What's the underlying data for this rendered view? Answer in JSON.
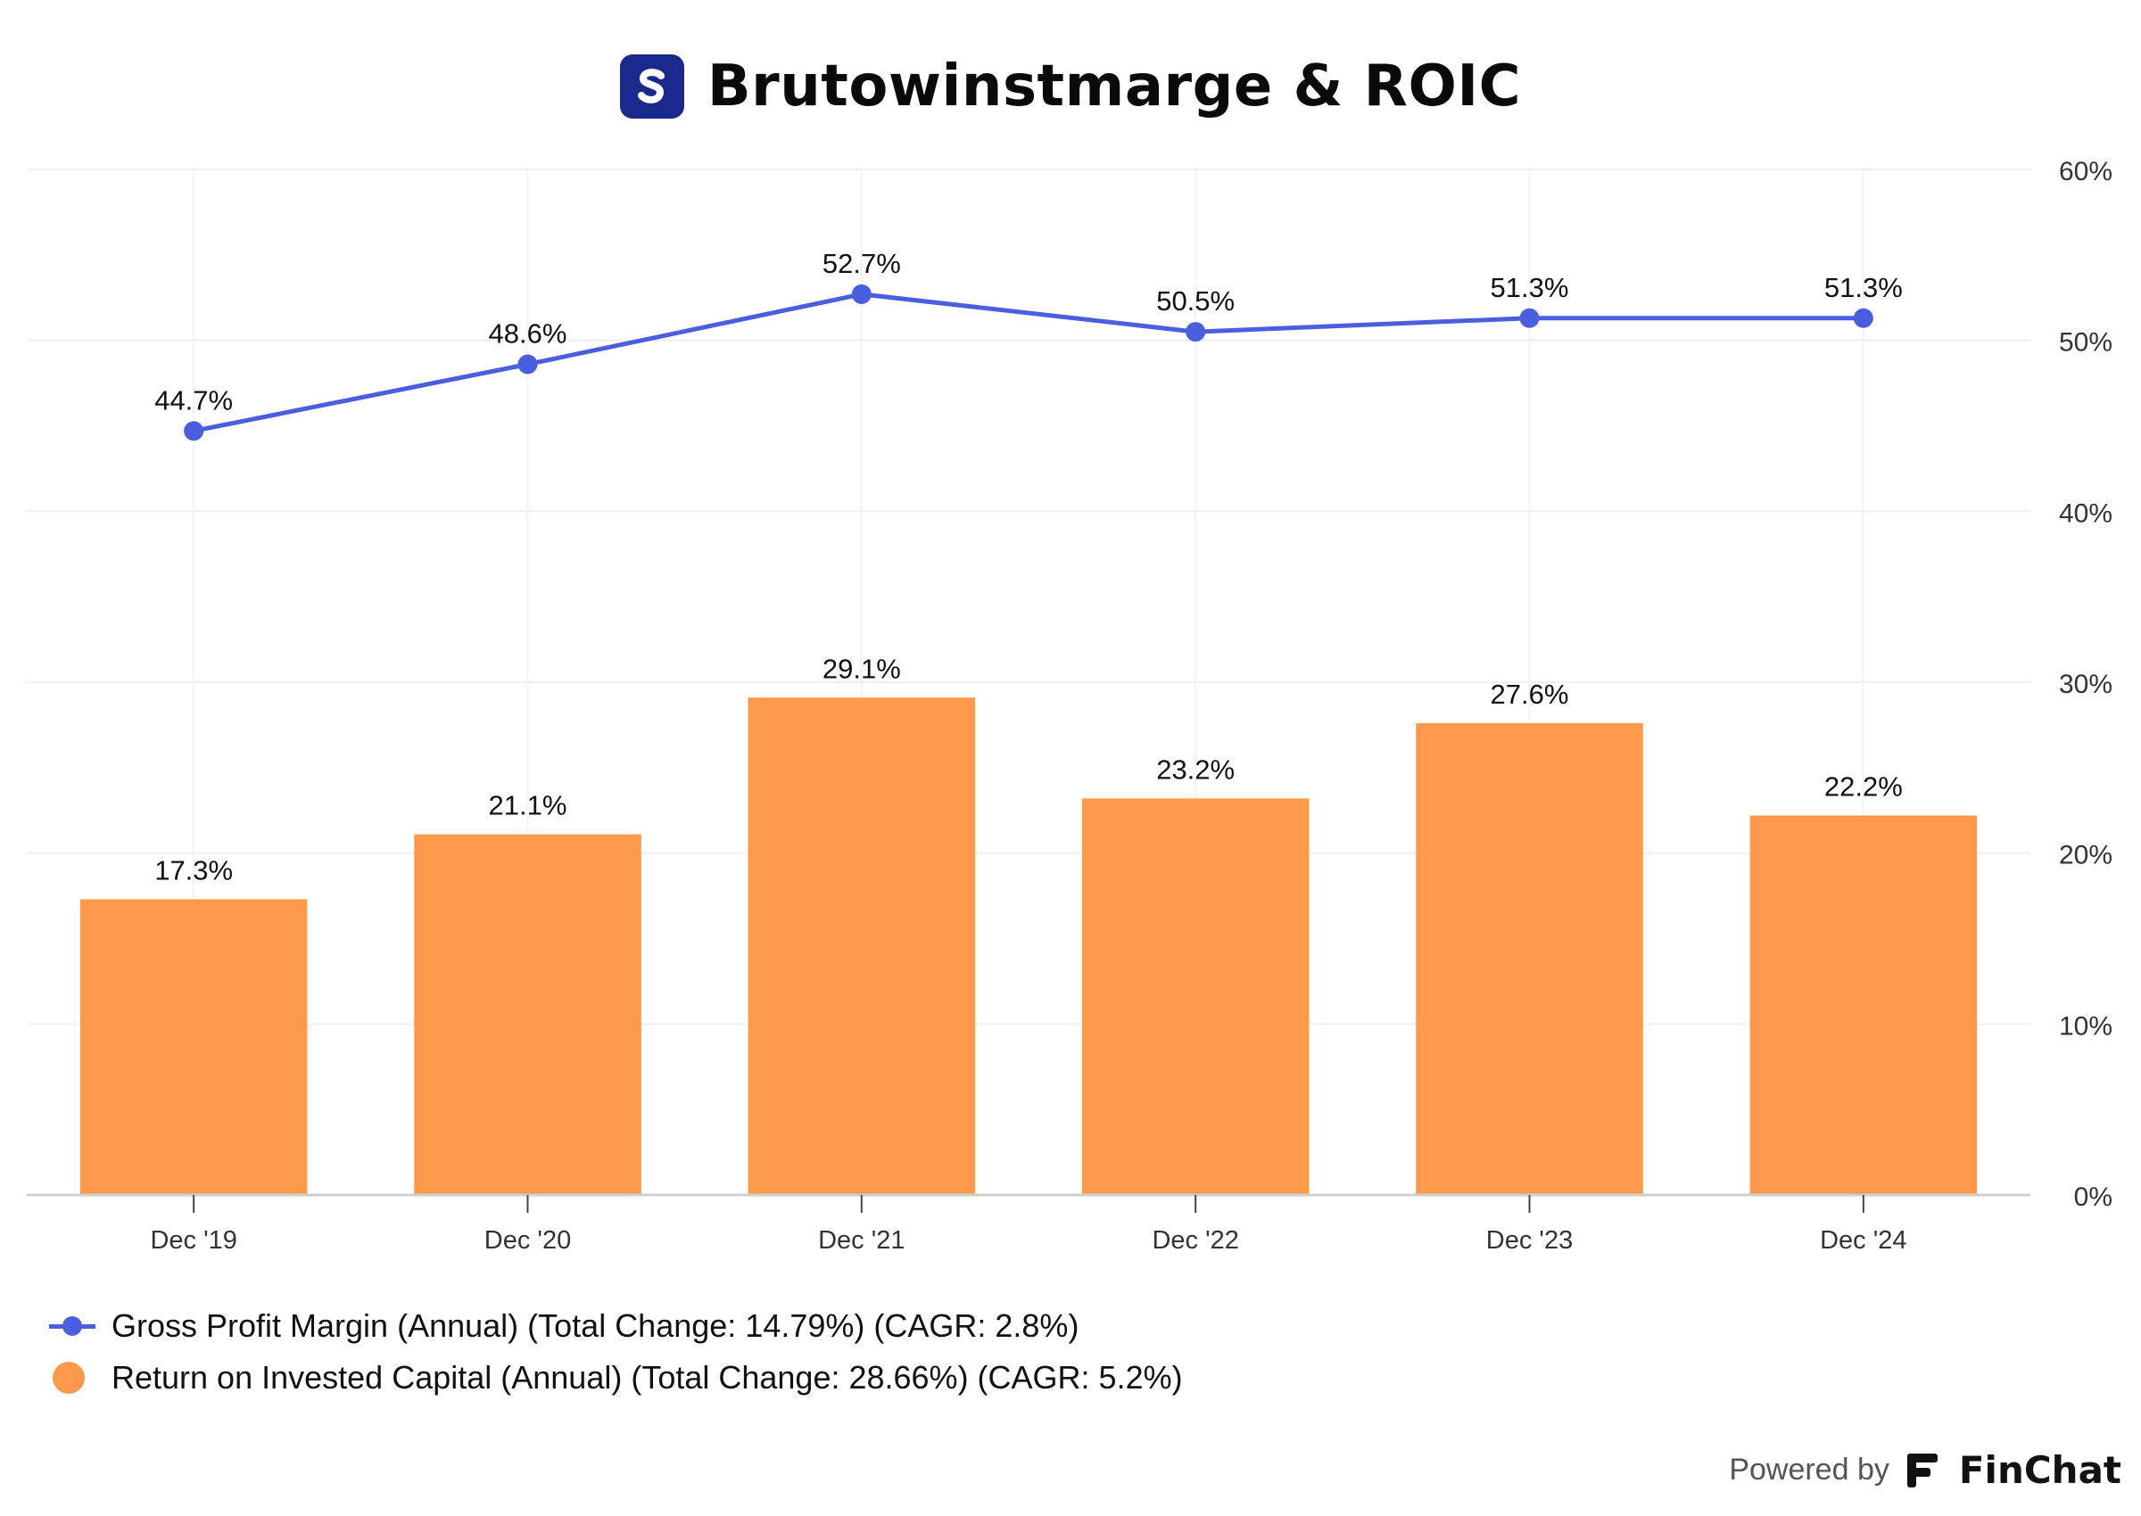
{
  "header": {
    "title": "Brutowinstmarge & ROIC",
    "logo_letter": "S",
    "logo_color": "#1a2a8c"
  },
  "chart_data": {
    "type": "bar",
    "title": "Brutowinstmarge & ROIC",
    "categories": [
      "Dec '19",
      "Dec '20",
      "Dec '21",
      "Dec '22",
      "Dec '23",
      "Dec '24"
    ],
    "y_axis": {
      "position": "right",
      "ylim": [
        0,
        60
      ],
      "ticks": [
        0,
        10,
        20,
        30,
        40,
        50,
        60
      ],
      "tick_labels": [
        "0%",
        "10%",
        "20%",
        "30%",
        "40%",
        "50%",
        "60%"
      ]
    },
    "grid": true,
    "series": [
      {
        "name": "Gross Profit Margin (Annual) (Total Change: 14.79%) (CAGR: 2.8%)",
        "type": "line",
        "color": "#4a5fe0",
        "values": [
          44.7,
          48.6,
          52.7,
          50.5,
          51.3,
          51.3
        ],
        "labels": [
          "44.7%",
          "48.6%",
          "52.7%",
          "50.5%",
          "51.3%",
          "51.3%"
        ]
      },
      {
        "name": "Return on Invested Capital (Annual) (Total Change: 28.66%) (CAGR: 5.2%)",
        "type": "bar",
        "color": "#ff9a4d",
        "values": [
          17.3,
          21.1,
          29.1,
          23.2,
          27.6,
          22.2
        ],
        "labels": [
          "17.3%",
          "21.1%",
          "29.1%",
          "23.2%",
          "27.6%",
          "22.2%"
        ]
      }
    ],
    "legend_position": "bottom-left"
  },
  "legend": {
    "line_label": "Gross Profit Margin (Annual) (Total Change: 14.79%) (CAGR: 2.8%)",
    "bar_label": "Return on Invested Capital (Annual) (Total Change: 28.66%) (CAGR: 5.2%)"
  },
  "footer": {
    "powered_by": "Powered by",
    "brand": "FinChat"
  }
}
